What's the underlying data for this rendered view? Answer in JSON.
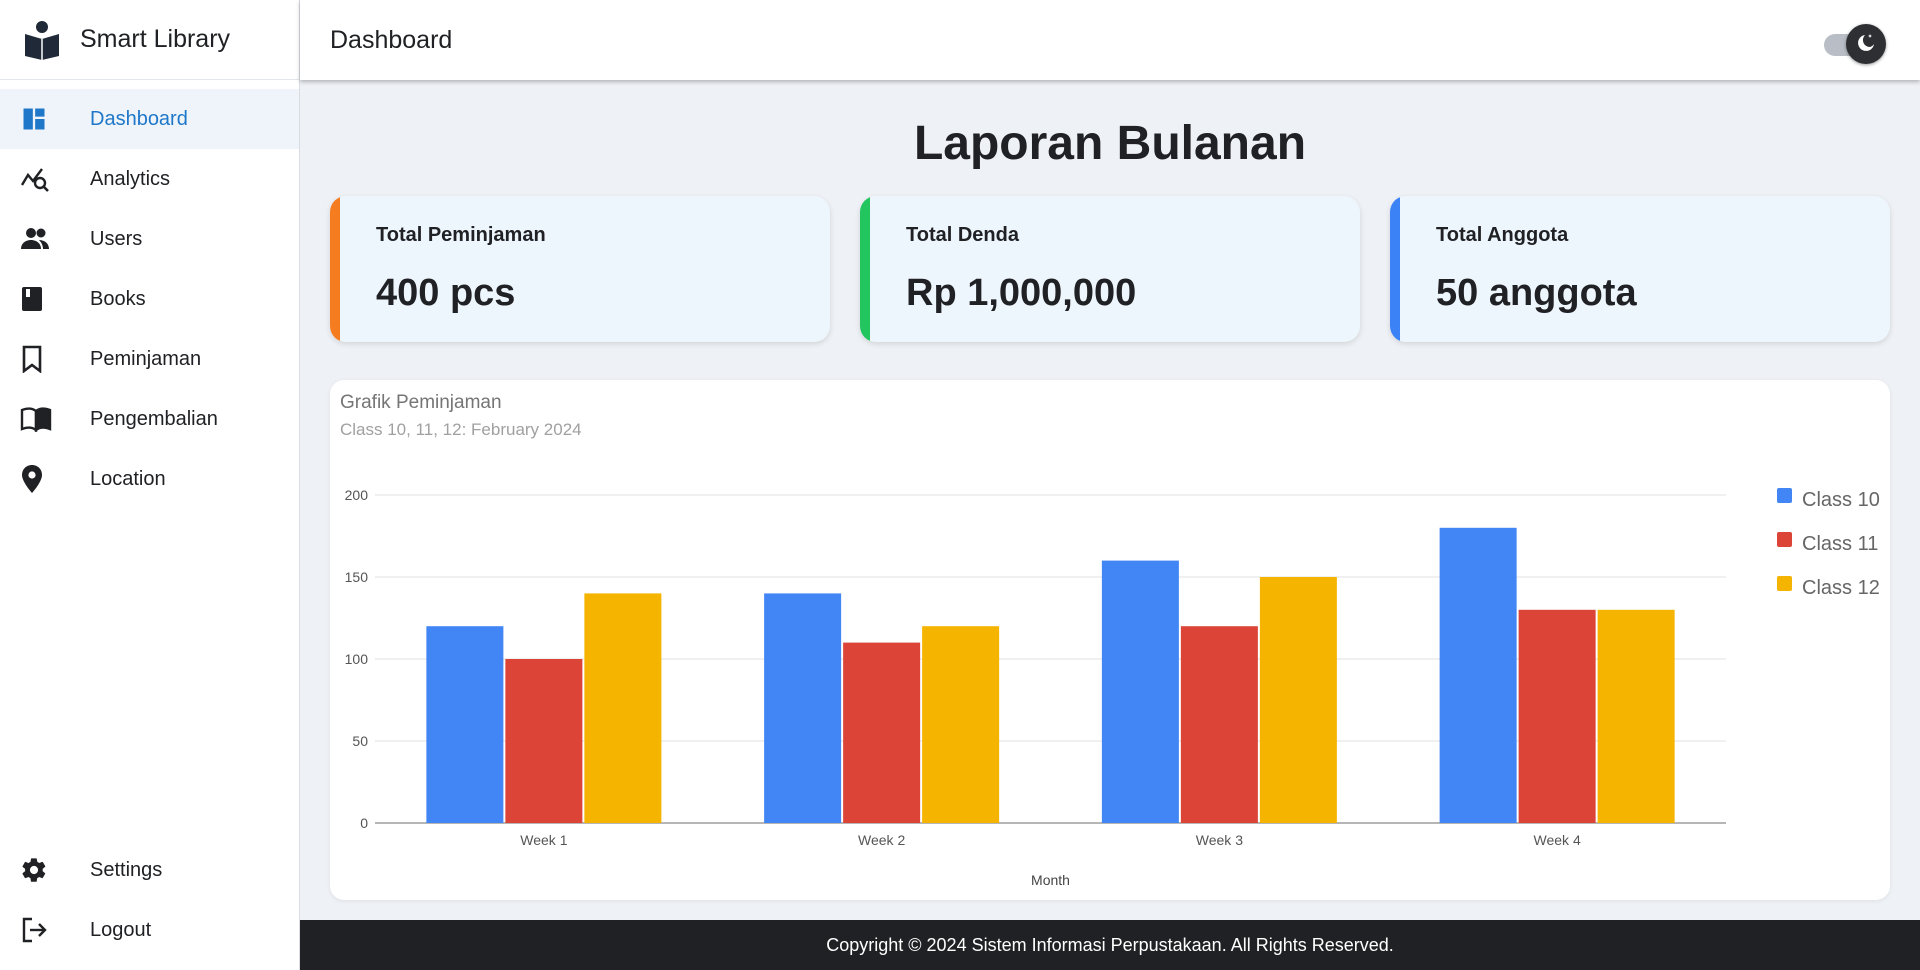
{
  "brand": {
    "title": "Smart Library",
    "logo_icon": "book-reader-icon"
  },
  "header": {
    "title": "Dashboard",
    "toggle_icon": "moon-icon"
  },
  "sidebar": {
    "items": [
      {
        "label": "Dashboard",
        "icon": "dashboard-icon",
        "active": true
      },
      {
        "label": "Analytics",
        "icon": "analytics-icon"
      },
      {
        "label": "Users",
        "icon": "users-icon"
      },
      {
        "label": "Books",
        "icon": "book-icon"
      },
      {
        "label": "Peminjaman",
        "icon": "bookmark-icon"
      },
      {
        "label": "Pengembalian",
        "icon": "open-book-icon"
      },
      {
        "label": "Location",
        "icon": "location-pin-icon"
      }
    ],
    "bottom_items": [
      {
        "label": "Settings",
        "icon": "gear-icon"
      },
      {
        "label": "Logout",
        "icon": "logout-icon"
      }
    ]
  },
  "report": {
    "title": "Laporan Bulanan"
  },
  "stats": [
    {
      "label": "Total Peminjaman",
      "value": "400 pcs",
      "color": "#f57c1f"
    },
    {
      "label": "Total Denda",
      "value": "Rp 1,000,000",
      "color": "#22c55e"
    },
    {
      "label": "Total Anggota",
      "value": "50 anggota",
      "color": "#3b82f6"
    }
  ],
  "chart_data": {
    "type": "bar",
    "title": "Grafik Peminjaman",
    "subtitle": "Class 10, 11, 12: February 2024",
    "xlabel": "Month",
    "ylabel": "",
    "categories": [
      "Week 1",
      "Week 2",
      "Week 3",
      "Week 4"
    ],
    "series": [
      {
        "name": "Class 10",
        "values": [
          120,
          140,
          160,
          180
        ],
        "color": "#4285f4"
      },
      {
        "name": "Class 11",
        "values": [
          100,
          110,
          120,
          130
        ],
        "color": "#db4437"
      },
      {
        "name": "Class 12",
        "values": [
          140,
          120,
          150,
          130
        ],
        "color": "#f4b400"
      }
    ],
    "ylim": [
      0,
      200
    ],
    "yticks": [
      0,
      50,
      100,
      150,
      200
    ],
    "grid": true,
    "legend": "right"
  },
  "footer": {
    "text": "Copyright © 2024 Sistem Informasi Perpustakaan. All Rights Reserved."
  }
}
